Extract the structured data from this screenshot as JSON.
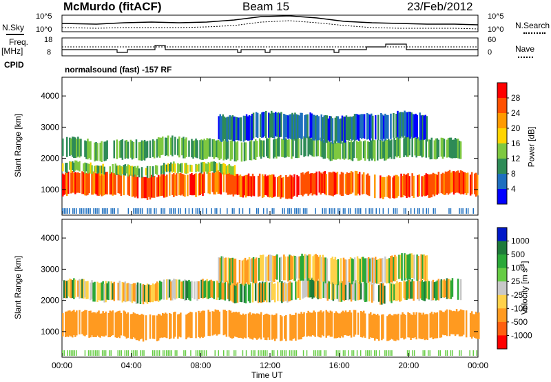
{
  "header": {
    "station": "McMurdo (fitACF)",
    "beam": "Beam 15",
    "date": "23/Feb/2012"
  },
  "side_labels": {
    "nsky": "N.Sky",
    "nsearch": "N.Search",
    "freq_line1": "Freq.",
    "freq_line2": "[MHz]",
    "nave": "Nave",
    "cpid": "CPID"
  },
  "cpid_text": "normalsound (fast) -157 RF",
  "noise_panel": {
    "left_ticks": [
      "10^5",
      "10^0"
    ],
    "right_ticks": [
      "10^5",
      "10^0"
    ]
  },
  "freq_panel": {
    "left_ticks": [
      "18",
      "8"
    ],
    "right_ticks": [
      "60",
      "0"
    ]
  },
  "power_colorbar": {
    "label": "Power [dB]",
    "ticks": [
      "28",
      "24",
      "20",
      "16",
      "12",
      "8",
      "4"
    ],
    "colors": [
      "#ff0000",
      "#ff5000",
      "#ff9a00",
      "#ffd400",
      "#7ec840",
      "#2e8b57",
      "#1e6fbf",
      "#0000ff"
    ]
  },
  "velocity_colorbar": {
    "label": "Velocity [m s",
    "label_sup": "-1",
    "label_end": "]",
    "ticks": [
      "1000",
      "500",
      "100",
      "25",
      "-25",
      "-100",
      "-500",
      "-1000"
    ],
    "colors": [
      "#0018c8",
      "#1e7a3a",
      "#2aa838",
      "#66cc44",
      "#c8c8c8",
      "#ffd24a",
      "#ff9a20",
      "#ff6010",
      "#ff0000"
    ]
  },
  "chart_data": {
    "type": "heatmap",
    "title": "McMurdo (fitACF)  Beam 15  23/Feb/2012",
    "xlabel": "Time UT",
    "ylabel": "Slant Range [km]",
    "x_ticks": [
      "00:00",
      "04:00",
      "08:00",
      "12:00",
      "16:00",
      "20:00",
      "00:00"
    ],
    "y_ticks": [
      "1000",
      "2000",
      "3000",
      "4000"
    ],
    "xlim_hours": [
      0,
      24
    ],
    "ylim_km": [
      180,
      4600
    ],
    "panels": [
      {
        "name": "Power [dB]",
        "bands": [
          {
            "range_km": [
              800,
              1500
            ],
            "value_db": 26,
            "hours": [
              0,
              24
            ]
          },
          {
            "range_km": [
              1500,
              1800
            ],
            "value_db": 14,
            "hours": [
              0,
              10
            ]
          },
          {
            "range_km": [
              2000,
              2600
            ],
            "value_db": 12,
            "hours": [
              0,
              23
            ]
          },
          {
            "range_km": [
              2600,
              3400
            ],
            "value_db": 6,
            "hours": [
              9,
              21
            ]
          }
        ]
      },
      {
        "name": "Velocity [m s-1]",
        "bands": [
          {
            "range_km": [
              800,
              1600
            ],
            "value_ms": -300,
            "hours": [
              0,
              24
            ]
          },
          {
            "range_km": [
              2000,
              2600
            ],
            "value_ms": 0,
            "hours": [
              0,
              23
            ]
          },
          {
            "range_km": [
              2600,
              3400
            ],
            "value_ms": -50,
            "hours": [
              9,
              21
            ]
          }
        ]
      }
    ]
  }
}
